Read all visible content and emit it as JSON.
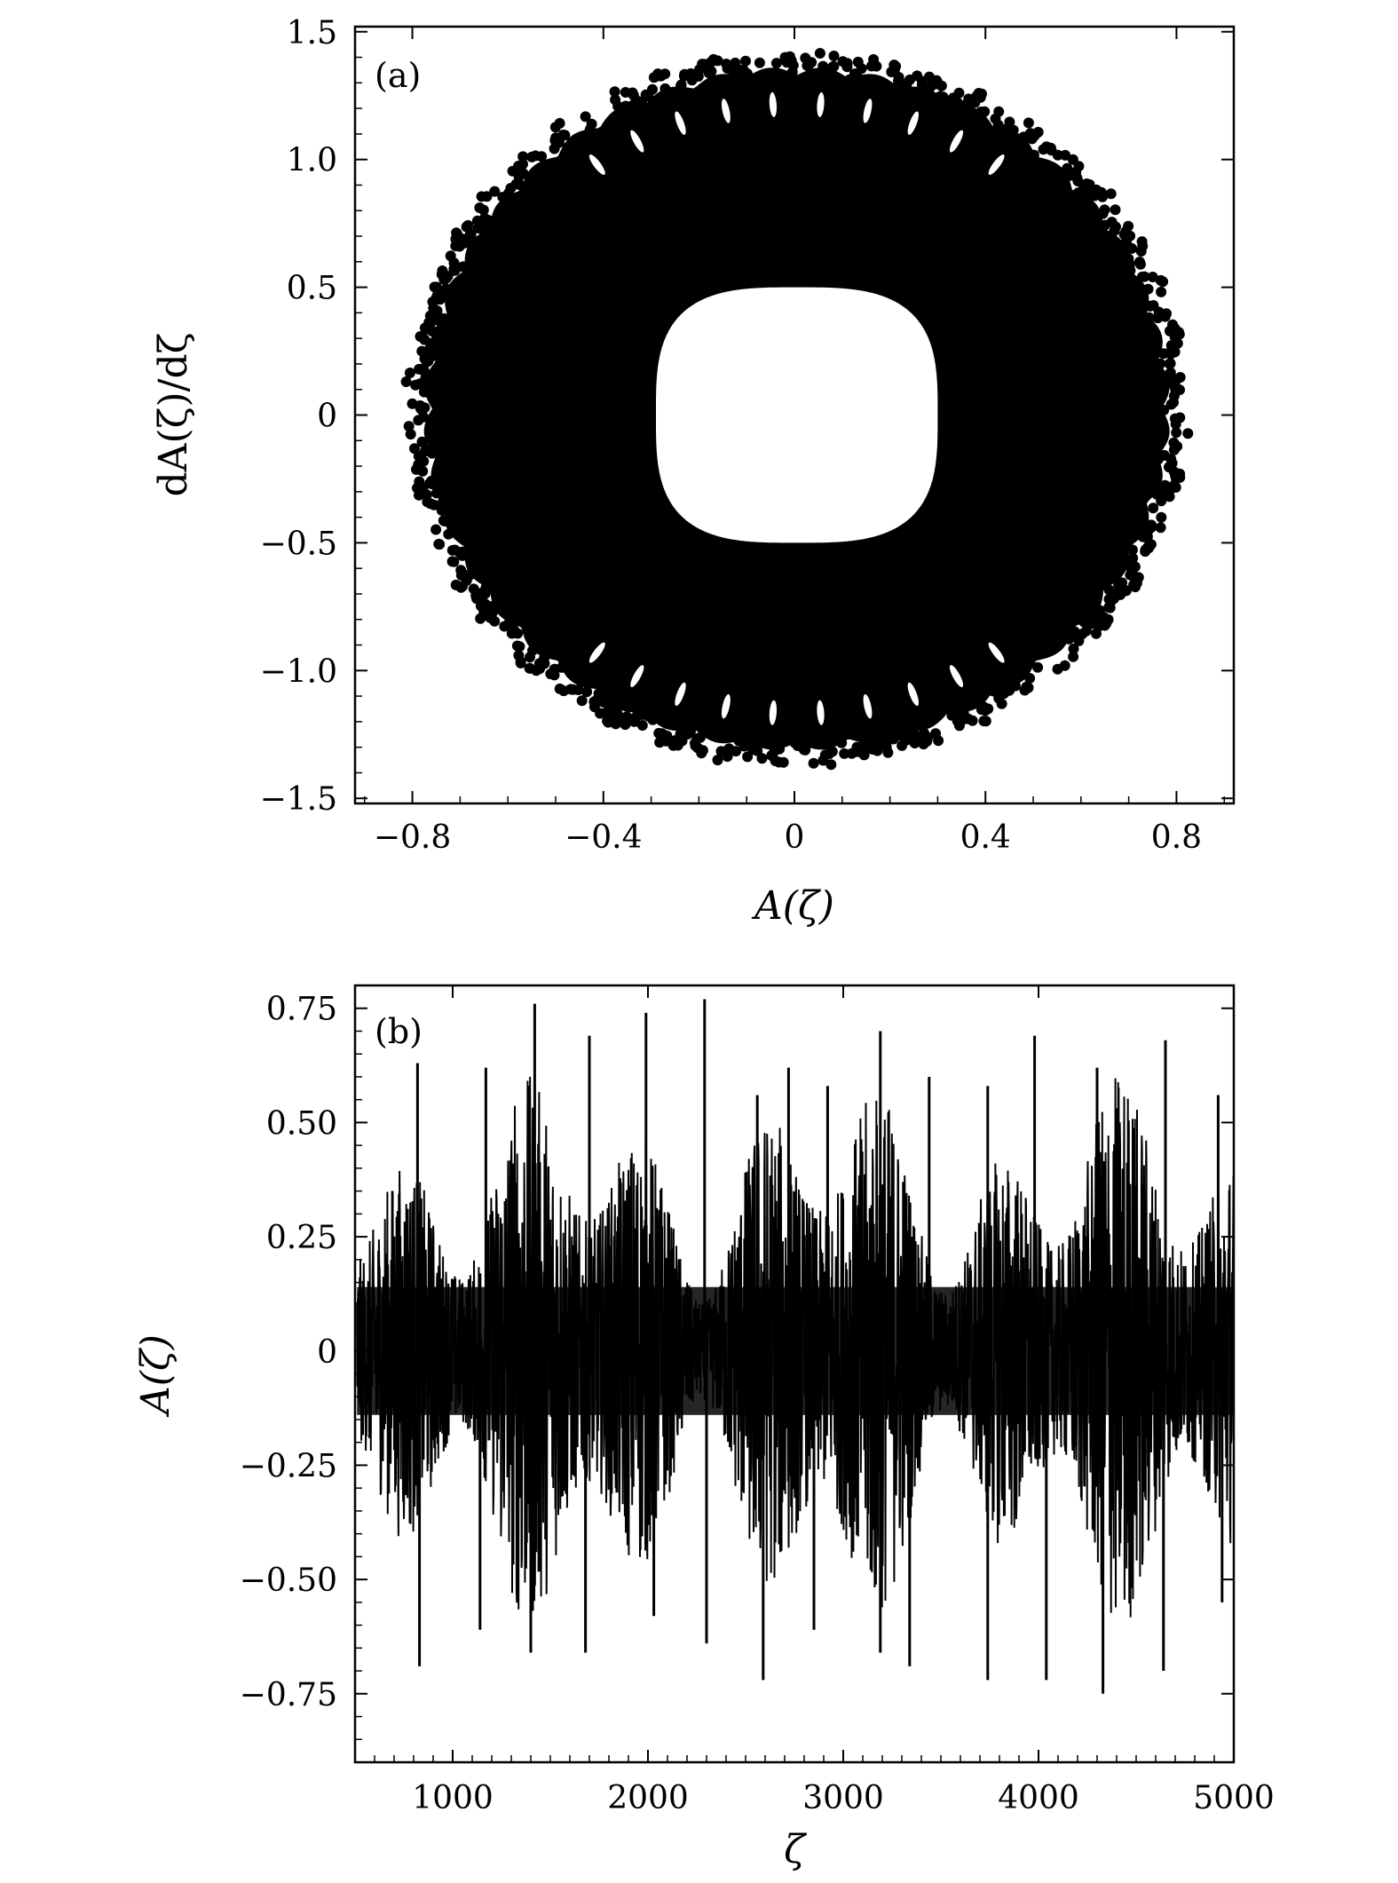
{
  "chart_data": [
    {
      "type": "scatter",
      "panel_label": "(a)",
      "xlabel": "A(ζ)",
      "ylabel": "dA(ζ)/dζ",
      "xlim": [
        -0.92,
        0.92
      ],
      "ylim": [
        -1.52,
        1.52
      ],
      "xticks": [
        -0.8,
        -0.4,
        0,
        0.4,
        0.8
      ],
      "xtick_labels": [
        "−0.8",
        "−0.4",
        "0",
        "0.4",
        "0.8"
      ],
      "yticks": [
        1.5,
        1.0,
        0.5,
        0,
        -0.5,
        -1.0,
        -1.5
      ],
      "ytick_labels": [
        "1.5",
        "1.0",
        "0.5",
        "0",
        "−0.5",
        "−1.0",
        "−1.5"
      ],
      "color": "#000000",
      "outer_boundary": {
        "x_extent": [
          -0.77,
          0.78
        ],
        "y_extent": [
          -1.3,
          1.35
        ]
      },
      "inner_hole": {
        "x_extent": [
          -0.29,
          0.3
        ],
        "y_extent": [
          -0.5,
          0.5
        ]
      }
    },
    {
      "type": "line",
      "panel_label": "(b)",
      "xlabel": "ζ",
      "ylabel": "A(ζ)",
      "xlim": [
        500,
        5000
      ],
      "ylim": [
        -0.9,
        0.8
      ],
      "xticks": [
        1000,
        2000,
        3000,
        4000,
        5000
      ],
      "xtick_labels": [
        "1000",
        "2000",
        "3000",
        "4000",
        "5000"
      ],
      "yticks": [
        0.75,
        0.5,
        0.25,
        0,
        -0.25,
        -0.5,
        -0.75
      ],
      "ytick_labels": [
        "0.75",
        "0.50",
        "0.25",
        "0",
        "−0.25",
        "−0.50",
        "−0.75"
      ],
      "color": "#000000",
      "amplitude_envelope": [
        -0.75,
        0.77
      ],
      "peaks": [
        {
          "x": 820,
          "y": 0.63
        },
        {
          "x": 1170,
          "y": 0.62
        },
        {
          "x": 1420,
          "y": 0.76
        },
        {
          "x": 1700,
          "y": 0.69
        },
        {
          "x": 1990,
          "y": 0.74
        },
        {
          "x": 2290,
          "y": 0.77
        },
        {
          "x": 2560,
          "y": 0.56
        },
        {
          "x": 2720,
          "y": 0.62
        },
        {
          "x": 2920,
          "y": 0.58
        },
        {
          "x": 3190,
          "y": 0.7
        },
        {
          "x": 3440,
          "y": 0.6
        },
        {
          "x": 3740,
          "y": 0.58
        },
        {
          "x": 3980,
          "y": 0.69
        },
        {
          "x": 4300,
          "y": 0.62
        },
        {
          "x": 4650,
          "y": 0.68
        },
        {
          "x": 4920,
          "y": 0.56
        }
      ],
      "troughs": [
        {
          "x": 830,
          "y": -0.69
        },
        {
          "x": 1140,
          "y": -0.61
        },
        {
          "x": 1400,
          "y": -0.66
        },
        {
          "x": 1680,
          "y": -0.66
        },
        {
          "x": 2030,
          "y": -0.58
        },
        {
          "x": 2300,
          "y": -0.64
        },
        {
          "x": 2590,
          "y": -0.72
        },
        {
          "x": 2850,
          "y": -0.61
        },
        {
          "x": 3190,
          "y": -0.66
        },
        {
          "x": 3340,
          "y": -0.69
        },
        {
          "x": 3740,
          "y": -0.72
        },
        {
          "x": 4040,
          "y": -0.72
        },
        {
          "x": 4330,
          "y": -0.75
        },
        {
          "x": 4640,
          "y": -0.7
        },
        {
          "x": 4940,
          "y": -0.55
        }
      ]
    }
  ]
}
